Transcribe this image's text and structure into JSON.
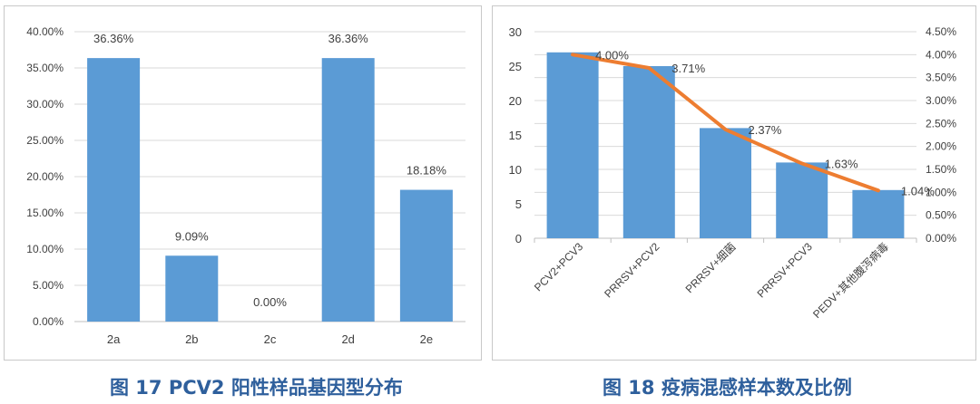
{
  "charts": [
    {
      "chart_data": {
        "type": "bar",
        "categories": [
          "2a",
          "2b",
          "2c",
          "2d",
          "2e"
        ],
        "values": [
          36.36,
          9.09,
          0.0,
          36.36,
          18.18
        ],
        "data_labels": [
          "36.36%",
          "9.09%",
          "0.00%",
          "36.36%",
          "18.18%"
        ],
        "ylim": [
          0,
          40
        ],
        "y_ticks": [
          "0.00%",
          "5.00%",
          "10.00%",
          "15.00%",
          "20.00%",
          "25.00%",
          "30.00%",
          "35.00%",
          "40.00%"
        ],
        "grid": true,
        "bar_color": "#5b9bd5"
      },
      "caption": "图 17    PCV2 阳性样品基因型分布"
    },
    {
      "chart_data": {
        "type": "bar",
        "categories": [
          "PCV2+PCV3",
          "PRRSV+PCV2",
          "PRRSV+细菌",
          "PRRSV+PCV3",
          "PEDV+其他腹泻病毒"
        ],
        "series": [
          {
            "type": "bar",
            "values": [
              27,
              25,
              16,
              11,
              7
            ],
            "color": "#5b9bd5",
            "axis": "left"
          },
          {
            "type": "line",
            "values": [
              4.0,
              3.71,
              2.37,
              1.63,
              1.04
            ],
            "labels": [
              "4.00%",
              "3.71%",
              "2.37%",
              "1.63%",
              "1.04%"
            ],
            "color": "#ed7d31",
            "axis": "right"
          }
        ],
        "ylim_left": [
          0,
          30
        ],
        "y_ticks_left": [
          "0",
          "5",
          "10",
          "15",
          "20",
          "25",
          "30"
        ],
        "ylim_right": [
          0,
          4.5
        ],
        "y_ticks_right": [
          "0.00%",
          "0.50%",
          "1.00%",
          "1.50%",
          "2.00%",
          "2.50%",
          "3.00%",
          "3.50%",
          "4.00%",
          "4.50%"
        ],
        "grid": true
      },
      "caption": "图 18  疫病混感样本数及比例"
    }
  ]
}
